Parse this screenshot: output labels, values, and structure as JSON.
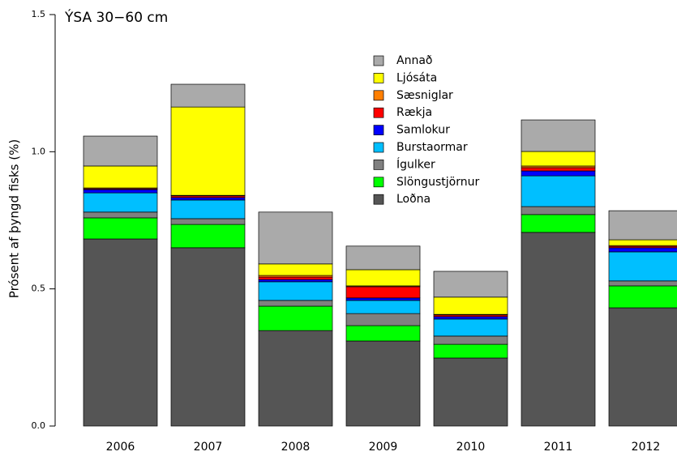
{
  "chart_data": {
    "type": "stacked-bar",
    "title": "ÝSA 30−60 cm",
    "y_label": "Prósent af þyngd fisks (%)",
    "categories": [
      "2006",
      "2007",
      "2008",
      "2009",
      "2010",
      "2011",
      "2012"
    ],
    "series": [
      {
        "name": "Loðna",
        "color": "#555555",
        "values": [
          0.682,
          0.65,
          0.348,
          0.31,
          0.248,
          0.706,
          0.431
        ]
      },
      {
        "name": "Slöngustjörnur",
        "color": "#00ff00",
        "values": [
          0.077,
          0.085,
          0.089,
          0.056,
          0.05,
          0.065,
          0.08
        ]
      },
      {
        "name": "Ígulker",
        "color": "#808080",
        "values": [
          0.021,
          0.021,
          0.021,
          0.044,
          0.03,
          0.029,
          0.018
        ]
      },
      {
        "name": "Burstaormar",
        "color": "#00bfff",
        "values": [
          0.07,
          0.068,
          0.068,
          0.048,
          0.062,
          0.112,
          0.106
        ]
      },
      {
        "name": "Samlokur",
        "color": "#0000ff",
        "values": [
          0.012,
          0.009,
          0.008,
          0.009,
          0.009,
          0.018,
          0.015
        ]
      },
      {
        "name": "Rækja",
        "color": "#ff0000",
        "values": [
          0.003,
          0.006,
          0.009,
          0.041,
          0.006,
          0.012,
          0.005
        ]
      },
      {
        "name": "Sæsniglar",
        "color": "#ff7f00",
        "values": [
          0.003,
          0.002,
          0.006,
          0.003,
          0.002,
          0.006,
          0.003
        ]
      },
      {
        "name": "Ljósáta",
        "color": "#ffff00",
        "values": [
          0.08,
          0.322,
          0.042,
          0.059,
          0.063,
          0.053,
          0.021
        ]
      },
      {
        "name": "Annað",
        "color": "#aaaaaa",
        "values": [
          0.109,
          0.083,
          0.189,
          0.086,
          0.094,
          0.115,
          0.106
        ]
      }
    ],
    "ylim": [
      0,
      1.5
    ],
    "yticks": [
      {
        "value": 0,
        "label": "0.0"
      },
      0.5,
      {
        "value": 1,
        "label": "1.0"
      },
      1.5
    ]
  }
}
